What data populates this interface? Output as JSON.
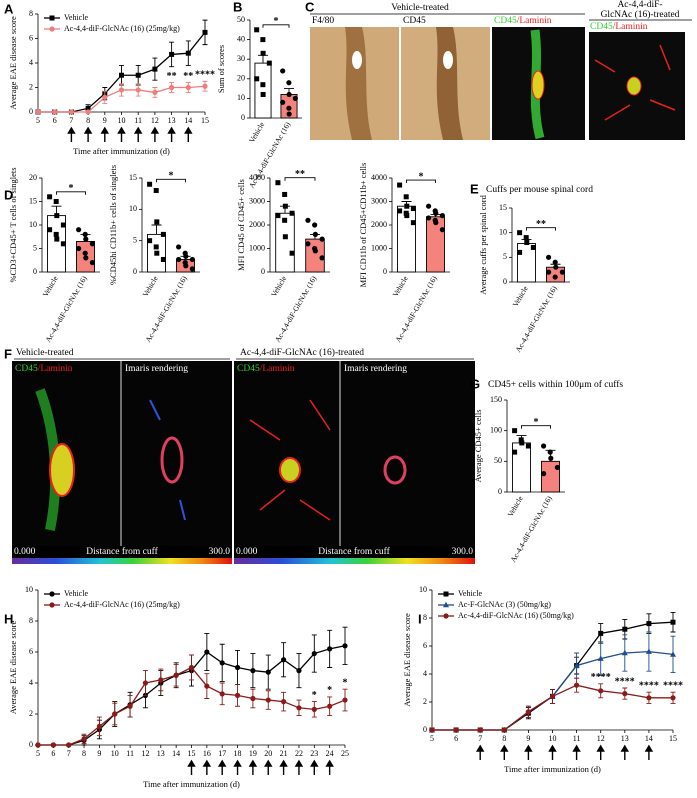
{
  "chart_data": [
    {
      "type": "line",
      "panel": "A",
      "ylabel": "Average EAE disease score",
      "xlabel": "Time after immunization (d)",
      "x": [
        5,
        6,
        7,
        8,
        9,
        10,
        11,
        12,
        13,
        14,
        15
      ],
      "xlim": [
        5,
        15
      ],
      "xticks": [
        5,
        6,
        7,
        8,
        9,
        10,
        11,
        12,
        13,
        14,
        15
      ],
      "ylim": [
        0,
        8
      ],
      "yticks": [
        0,
        2,
        4,
        6,
        8
      ],
      "legend": "upper left",
      "series": [
        {
          "name": "Vehicle",
          "color": "#000000",
          "marker": "square",
          "values": [
            0,
            0,
            0,
            0.3,
            1.5,
            3,
            3,
            3.5,
            4.7,
            4.8,
            6.5
          ],
          "errors": [
            0,
            0,
            0,
            0.3,
            0.5,
            0.8,
            0.8,
            0.9,
            1,
            1,
            1
          ]
        },
        {
          "name": "Ac-4,4-diF-GlcNAc (16) (25mg/kg)",
          "color": "#f07c7c",
          "marker": "circle",
          "values": [
            0,
            0,
            0,
            0,
            1.2,
            1.8,
            1.8,
            1.6,
            2,
            2,
            2.1
          ],
          "errors": [
            0,
            0,
            0,
            0,
            0.5,
            0.5,
            0.5,
            0.4,
            0.4,
            0.4,
            0.4
          ]
        }
      ],
      "annotations": [
        {
          "x": 13,
          "label": "**"
        },
        {
          "x": 14,
          "label": "**"
        },
        {
          "x": 15,
          "label": "****"
        }
      ],
      "arrows": [
        7,
        8,
        9,
        10,
        11,
        12,
        13,
        14
      ]
    },
    {
      "type": "bar",
      "panel": "B",
      "ylabel": "Sum of scores",
      "categories": [
        "Vehicle",
        "Ac-4,4-diF-GlcNAc (16)"
      ],
      "values": [
        28,
        12
      ],
      "errors": [
        4,
        3
      ],
      "colors": [
        "#ffffff",
        "#f4837d"
      ],
      "ylim": [
        0,
        50
      ],
      "yticks": [
        0,
        10,
        20,
        30,
        40,
        50
      ],
      "points": [
        [
          45,
          40,
          33,
          28,
          20,
          17,
          12
        ],
        [
          24,
          18,
          12,
          10,
          8,
          5,
          2
        ]
      ],
      "significance": "*"
    },
    {
      "type": "bar",
      "panel": "D",
      "ylabel": "%CD3+CD45+ T cells of singlets",
      "categories": [
        "Vehicle",
        "Ac-4,4-diF-GlcNAc (16)"
      ],
      "values": [
        12,
        6.5
      ],
      "errors": [
        2,
        1.5
      ],
      "colors": [
        "#ffffff",
        "#f4837d"
      ],
      "ylim": [
        0,
        20
      ],
      "yticks": [
        0,
        5,
        10,
        15,
        20
      ],
      "points": [
        [
          16,
          15,
          12,
          10,
          9,
          8,
          7,
          6
        ],
        [
          9,
          8,
          7,
          6,
          5,
          4,
          3,
          2
        ]
      ],
      "significance": "*"
    },
    {
      "type": "bar",
      "ylabel": "%CD45hi CD11b+ cells of singlets",
      "categories": [
        "Vehicle",
        "Ac-4,4-diF-GlcNAc (16)"
      ],
      "values": [
        6,
        2
      ],
      "errors": [
        1.5,
        0.5
      ],
      "colors": [
        "#ffffff",
        "#f4837d"
      ],
      "ylim": [
        0,
        15
      ],
      "yticks": [
        0,
        5,
        10,
        15
      ],
      "points": [
        [
          14,
          13,
          8,
          6,
          5,
          4,
          3,
          2
        ],
        [
          4,
          3,
          2.5,
          2,
          2,
          1.5,
          1,
          0.5
        ]
      ],
      "significance": "*"
    },
    {
      "type": "bar",
      "ylabel": "MFI CD45 of CD45+ cells",
      "categories": [
        "Vehicle",
        "Ac-4,4-diF-GlcNAc (16)"
      ],
      "values": [
        2500,
        1400
      ],
      "errors": [
        300,
        200
      ],
      "colors": [
        "#ffffff",
        "#f4837d"
      ],
      "ylim": [
        0,
        4000
      ],
      "yticks": [
        0,
        1000,
        2000,
        3000,
        4000
      ],
      "points": [
        [
          3800,
          3300,
          2800,
          2500,
          2400,
          2200,
          1500,
          800
        ],
        [
          2200,
          2000,
          1600,
          1400,
          1200,
          1000,
          900,
          600
        ]
      ],
      "significance": "**"
    },
    {
      "type": "bar",
      "ylabel": "MFI CD11b of CD45+CD11b+ cells",
      "categories": [
        "Vehicle",
        "Ac-4,4-diF-GlcNAc (16)"
      ],
      "values": [
        2800,
        2350
      ],
      "errors": [
        200,
        100
      ],
      "colors": [
        "#ffffff",
        "#f4837d"
      ],
      "ylim": [
        0,
        4000
      ],
      "yticks": [
        0,
        1000,
        2000,
        3000,
        4000
      ],
      "points": [
        [
          3700,
          3200,
          2800,
          2700,
          2600,
          2500,
          2400,
          2100
        ],
        [
          2800,
          2600,
          2500,
          2400,
          2300,
          2200,
          2100,
          1800
        ]
      ],
      "significance": "*"
    },
    {
      "type": "bar",
      "panel": "E",
      "title": "Cuffs per mouse spinal cord",
      "ylabel": "Average cuffs per spinal cord",
      "categories": [
        "Vehicle",
        "Ac-4,4-diF-GlcNAc (16)"
      ],
      "values": [
        7.8,
        3
      ],
      "errors": [
        0.8,
        0.6
      ],
      "colors": [
        "#ffffff",
        "#f4837d"
      ],
      "ylim": [
        0,
        15
      ],
      "yticks": [
        0,
        5,
        10,
        15
      ],
      "points": [
        [
          10,
          9,
          8,
          7,
          6
        ],
        [
          5,
          4,
          3,
          2,
          2,
          1
        ]
      ],
      "significance": "**"
    },
    {
      "type": "bar",
      "panel": "G",
      "title": "CD45+ cells within 100μm of cuffs",
      "ylabel": "Average CD45+ cells",
      "categories": [
        "Vehicle",
        "Ac-4,4-diF-GlcNAc (16)"
      ],
      "values": [
        80,
        50
      ],
      "errors": [
        12,
        18
      ],
      "colors": [
        "#ffffff",
        "#f4837d"
      ],
      "ylim": [
        0,
        150
      ],
      "yticks": [
        0,
        50,
        100,
        150
      ],
      "points": [
        [
          100,
          85,
          80,
          75,
          65
        ],
        [
          75,
          65,
          55,
          40,
          30
        ]
      ],
      "significance": "*"
    },
    {
      "type": "line",
      "panel": "H",
      "ylabel": "Average EAE disease score",
      "xlabel": "Time after immunization (d)",
      "x": [
        5,
        6,
        7,
        8,
        9,
        10,
        11,
        12,
        13,
        14,
        15,
        16,
        17,
        18,
        19,
        20,
        21,
        22,
        23,
        24,
        25
      ],
      "xlim": [
        5,
        25
      ],
      "xticks": [
        5,
        6,
        7,
        8,
        9,
        10,
        11,
        12,
        13,
        14,
        15,
        16,
        17,
        18,
        19,
        20,
        21,
        22,
        23,
        24,
        25
      ],
      "ylim": [
        0,
        10
      ],
      "yticks": [
        0,
        2,
        4,
        6,
        8,
        10
      ],
      "legend": "upper left",
      "series": [
        {
          "name": "Vehicle",
          "color": "#000000",
          "marker": "circle",
          "values": [
            0,
            0,
            0,
            0.3,
            1,
            2,
            2.6,
            3.2,
            4,
            4.5,
            4.8,
            6,
            5.3,
            5,
            4.8,
            4.7,
            5.5,
            4.8,
            5.9,
            6.2,
            6.4
          ],
          "errors": [
            0,
            0,
            0,
            0.3,
            0.6,
            0.8,
            0.8,
            0.8,
            0.8,
            0.8,
            1,
            1.2,
            1.2,
            1.1,
            1.1,
            1.1,
            1.1,
            1.1,
            1.2,
            1.2,
            1.2
          ]
        },
        {
          "name": "Ac-4,4-diF-GlcNAc (16) (25mg/kg)",
          "color": "#8b1a1a",
          "marker": "circle",
          "values": [
            0,
            0,
            0,
            0.4,
            1.2,
            2,
            2.5,
            4,
            4.2,
            4.5,
            5,
            3.8,
            3.3,
            3.2,
            3,
            2.9,
            2.8,
            2.4,
            2.3,
            2.5,
            2.9
          ],
          "errors": [
            0,
            0,
            0,
            0.3,
            0.6,
            0.7,
            0.7,
            0.8,
            0.7,
            0.7,
            0.8,
            0.8,
            0.7,
            0.7,
            0.6,
            0.6,
            0.6,
            0.5,
            0.5,
            0.6,
            0.7
          ]
        }
      ],
      "annotations": [
        {
          "x": 23,
          "label": "*"
        },
        {
          "x": 24,
          "label": "*"
        },
        {
          "x": 25,
          "label": "*"
        }
      ],
      "arrows": [
        15,
        16,
        17,
        18,
        19,
        20,
        21,
        22,
        23,
        24
      ]
    },
    {
      "type": "line",
      "panel": "I",
      "ylabel": "Average EAE disease score",
      "xlabel": "Time after immunization (d)",
      "x": [
        5,
        6,
        7,
        8,
        9,
        10,
        11,
        12,
        13,
        14,
        15
      ],
      "xlim": [
        5,
        15
      ],
      "xticks": [
        5,
        6,
        7,
        8,
        9,
        10,
        11,
        12,
        13,
        14,
        15
      ],
      "ylim": [
        0,
        10
      ],
      "yticks": [
        0,
        2,
        4,
        6,
        8,
        10
      ],
      "legend": "upper left",
      "series": [
        {
          "name": "Vehicle",
          "color": "#000000",
          "marker": "square",
          "values": [
            0,
            0,
            0,
            0,
            1.2,
            2.4,
            4.6,
            6.9,
            7.2,
            7.6,
            7.7
          ],
          "errors": [
            0,
            0,
            0,
            0,
            0.4,
            0.5,
            0.6,
            0.7,
            0.7,
            0.7,
            0.7
          ]
        },
        {
          "name": "Ac-F-GlcNAc (3) (50mg/kg)",
          "color": "#1f4e8c",
          "marker": "triangle",
          "values": [
            0,
            0,
            0,
            0,
            1.3,
            2.4,
            4.6,
            5.1,
            5.5,
            5.6,
            5.4
          ],
          "errors": [
            0,
            0,
            0,
            0,
            0.4,
            0.5,
            0.9,
            1.2,
            1.3,
            1.4,
            1.3
          ]
        },
        {
          "name": "Ac-4,4-diF-GlcNAc (16) (50mg/kg)",
          "color": "#8b1a1a",
          "marker": "circle",
          "values": [
            0,
            0,
            0,
            0,
            1.3,
            2.4,
            3.2,
            2.8,
            2.6,
            2.3,
            2.3
          ],
          "errors": [
            0,
            0,
            0,
            0,
            0.4,
            0.5,
            0.5,
            0.5,
            0.4,
            0.4,
            0.4
          ]
        }
      ],
      "annotations": [
        {
          "x": 12,
          "label": "****"
        },
        {
          "x": 13,
          "label": "****"
        },
        {
          "x": 14,
          "label": "****"
        },
        {
          "x": 15,
          "label": "****"
        }
      ],
      "arrows": [
        7,
        8,
        9,
        10,
        11,
        12,
        13,
        14
      ]
    }
  ],
  "figure_panels": {
    "C": {
      "panel": "C",
      "group_label": "Vehicle-treated",
      "stains": [
        "F4/80",
        "CD45"
      ],
      "merge": [
        "CD45",
        "/Laminin"
      ],
      "treated_label": [
        "Ac-4,4-diF-",
        "GlcNAc (16)-treated"
      ]
    },
    "F": {
      "panel": "F",
      "left_label": "Vehicle-treated",
      "right_label": "Ac-4,4-diF-GlcNAc (16)-treated",
      "merge": [
        "CD45",
        "/Laminin"
      ],
      "render": "Imaris rendering",
      "scale_min": "0.000",
      "scale_label": "Distance from cuff",
      "scale_max": "300.0"
    }
  }
}
